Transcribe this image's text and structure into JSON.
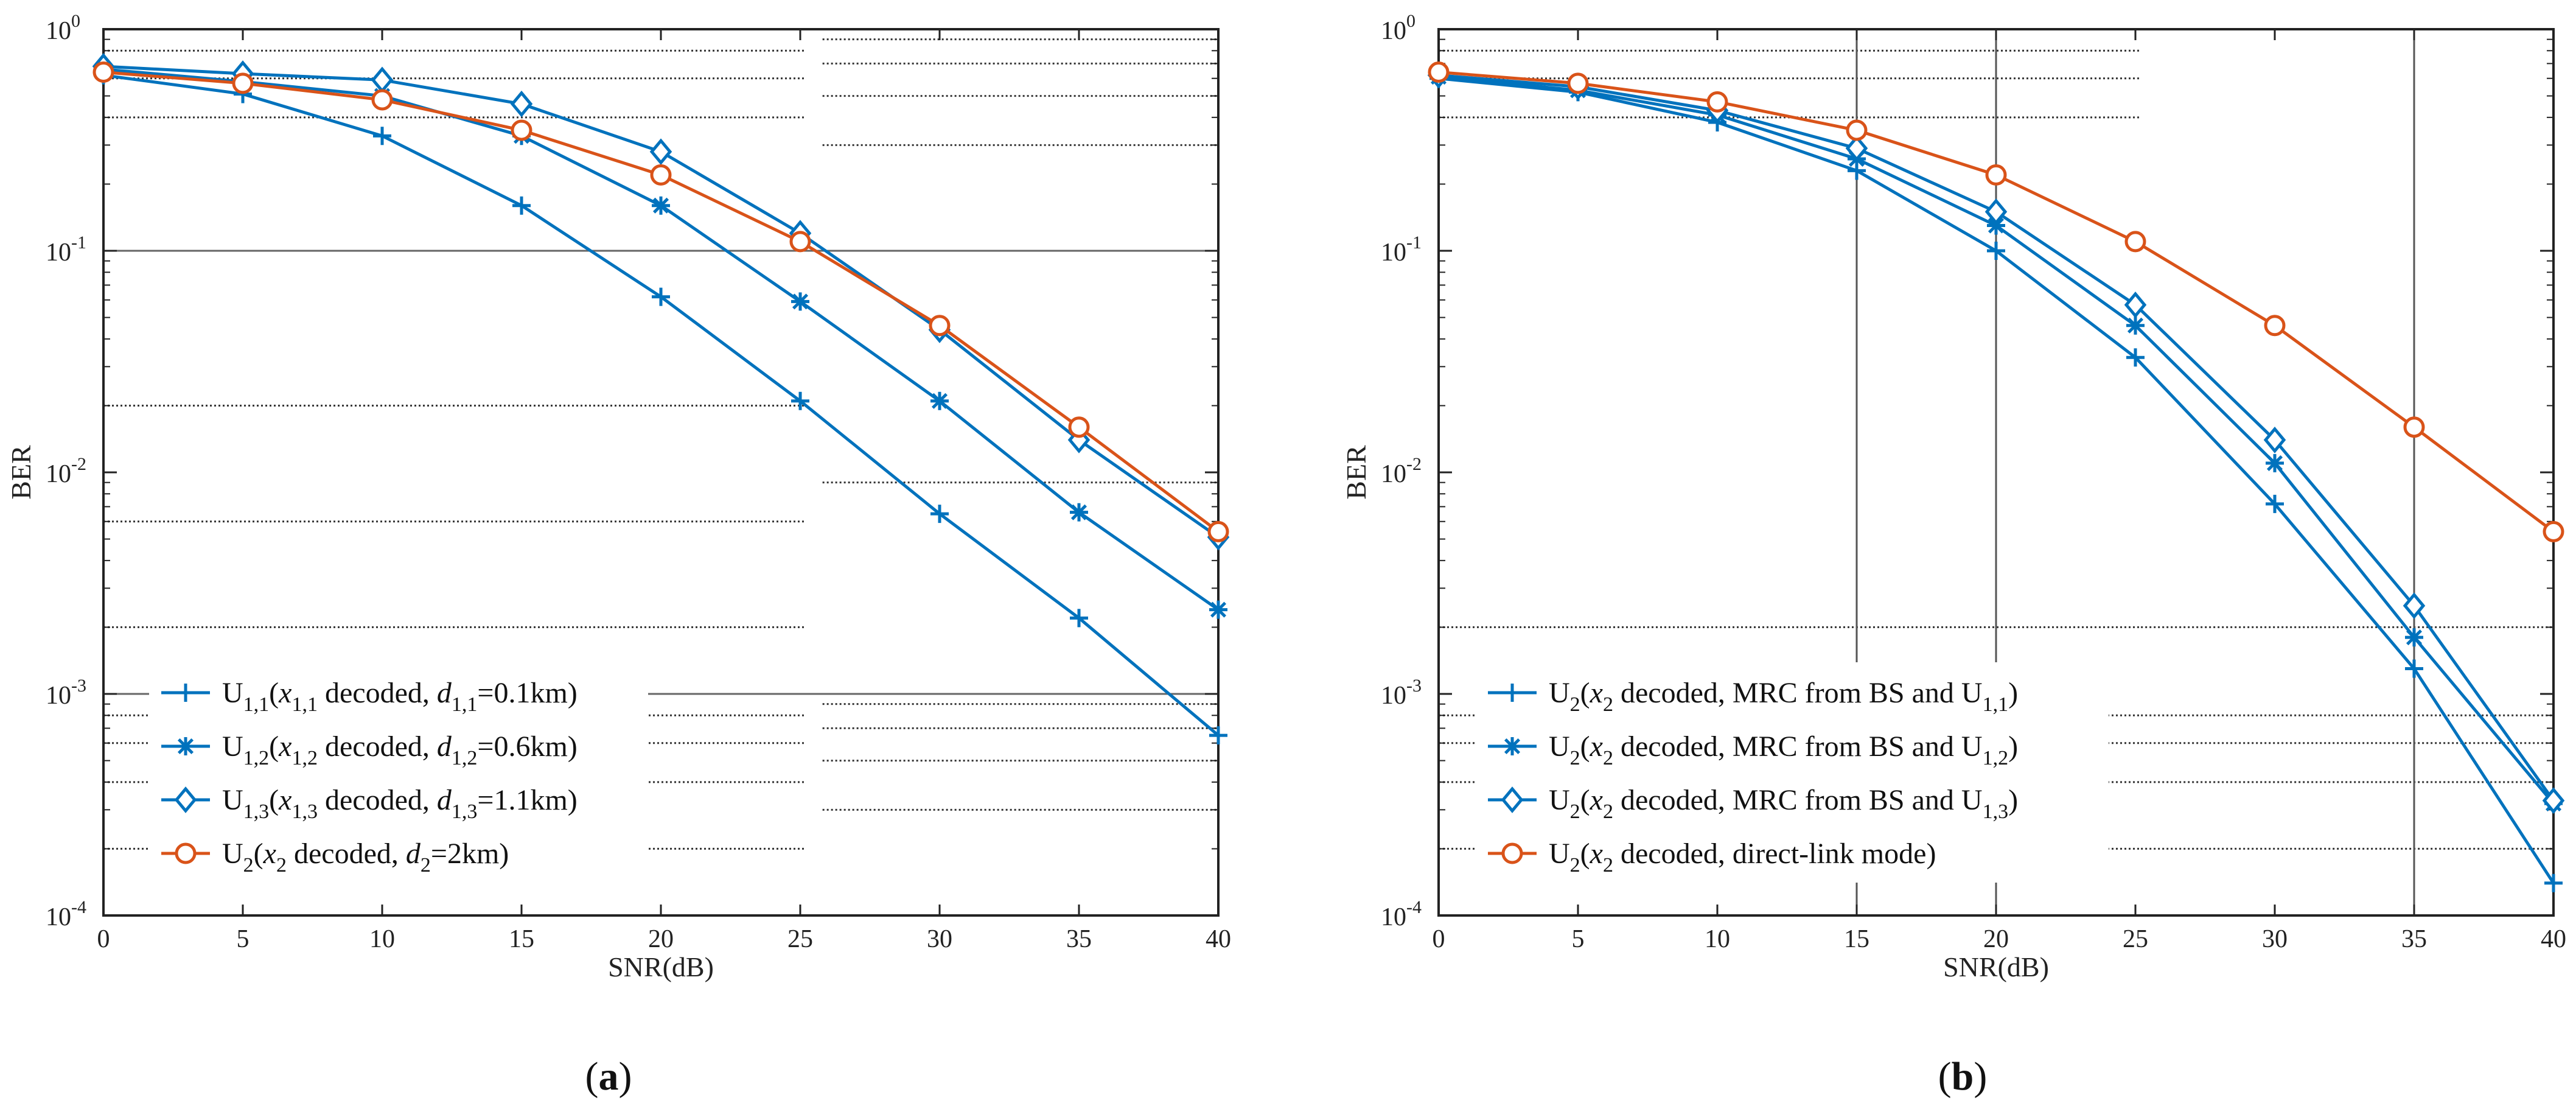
{
  "colors": {
    "blue": "#0072BD",
    "orange": "#D95319",
    "axis": "#222222",
    "grid": "#555555"
  },
  "chart_data": [
    {
      "panel": "a",
      "caption": "(a)",
      "type": "line",
      "xlabel": "SNR(dB)",
      "ylabel": "BER",
      "yscale": "log",
      "xlim": [
        0,
        40
      ],
      "ylim_exp": [
        -4,
        0
      ],
      "x_ticks": [
        "0",
        "5",
        "10",
        "15",
        "20",
        "25",
        "30",
        "35",
        "40"
      ],
      "y_tick_exps": [
        "0",
        "-1",
        "-2",
        "-3",
        "-4"
      ],
      "x": [
        0,
        5,
        10,
        15,
        20,
        25,
        30,
        35,
        40
      ],
      "legend_position": "bottom-left",
      "series": [
        {
          "name": "U1,1(x1,1 decoded, d1,1=0.1km)",
          "marker": "plus",
          "color": "#0072BD",
          "legend": {
            "m1": "U",
            "s1": "1,1",
            "m2": "(",
            "it1": "x",
            "s2": "1,1",
            "m3": " decoded, ",
            "it2": "d",
            "s3": "1,1",
            "m4": "=0.1km)"
          },
          "values": [
            0.62,
            0.51,
            0.33,
            0.16,
            0.062,
            0.021,
            0.0065,
            0.0022,
            0.00065
          ]
        },
        {
          "name": "U1,2(x1,2 decoded, d1,2=0.6km)",
          "marker": "asterisk",
          "color": "#0072BD",
          "legend": {
            "m1": "U",
            "s1": "1,2",
            "m2": "(",
            "it1": "x",
            "s2": "1,2",
            "m3": " decoded, ",
            "it2": "d",
            "s3": "1,2",
            "m4": "=0.6km)"
          },
          "values": [
            0.66,
            0.58,
            0.5,
            0.33,
            0.16,
            0.059,
            0.021,
            0.0066,
            0.0024
          ]
        },
        {
          "name": "U1,3(x1,3 decoded, d1,3=1.1km)",
          "marker": "diamond",
          "color": "#0072BD",
          "legend": {
            "m1": "U",
            "s1": "1,3",
            "m2": "(",
            "it1": "x",
            "s2": "1,3",
            "m3": " decoded, ",
            "it2": "d",
            "s3": "1,3",
            "m4": "=1.1km)"
          },
          "values": [
            0.68,
            0.63,
            0.59,
            0.46,
            0.28,
            0.12,
            0.044,
            0.014,
            0.0051
          ]
        },
        {
          "name": "U2(x2 decoded, d2=2km)",
          "marker": "circle",
          "color": "#D95319",
          "legend": {
            "m1": "U",
            "s1": "2",
            "m2": "(",
            "it1": "x",
            "s2": "2",
            "m3": " decoded, ",
            "it2": "d",
            "s3": "2",
            "m4": "=2km)"
          },
          "values": [
            0.64,
            0.57,
            0.48,
            0.35,
            0.22,
            0.11,
            0.046,
            0.016,
            0.0054
          ]
        }
      ]
    },
    {
      "panel": "b",
      "caption": "(b)",
      "type": "line",
      "xlabel": "SNR(dB)",
      "ylabel": "BER",
      "yscale": "log",
      "xlim": [
        0,
        40
      ],
      "ylim_exp": [
        -4,
        0
      ],
      "x_ticks": [
        "0",
        "5",
        "10",
        "15",
        "20",
        "25",
        "30",
        "35",
        "40"
      ],
      "y_tick_exps": [
        "0",
        "-1",
        "-2",
        "-3",
        "-4"
      ],
      "x": [
        0,
        5,
        10,
        15,
        20,
        25,
        30,
        35,
        40
      ],
      "legend_position": "bottom-left",
      "series": [
        {
          "name": "U2(x2 decoded, MRC from BS and U1,1)",
          "marker": "plus",
          "color": "#0072BD",
          "legend": {
            "m1": "U",
            "s1": "2",
            "m2": "(",
            "it1": "x",
            "s2": "2",
            "m3": " decoded, MRC from BS and U",
            "s3": "1,1",
            "m4": ")"
          },
          "values": [
            0.6,
            0.52,
            0.38,
            0.23,
            0.1,
            0.033,
            0.0072,
            0.0013,
            0.00014
          ]
        },
        {
          "name": "U2(x2 decoded, MRC from BS and U1,2)",
          "marker": "asterisk",
          "color": "#0072BD",
          "legend": {
            "m1": "U",
            "s1": "2",
            "m2": "(",
            "it1": "x",
            "s2": "2",
            "m3": " decoded, MRC from BS and U",
            "s3": "1,2",
            "m4": ")"
          },
          "values": [
            0.61,
            0.53,
            0.41,
            0.26,
            0.13,
            0.046,
            0.011,
            0.0018,
            0.00032
          ]
        },
        {
          "name": "U2(x2 decoded, MRC from BS and U1,3)",
          "marker": "diamond",
          "color": "#0072BD",
          "legend": {
            "m1": "U",
            "s1": "2",
            "m2": "(",
            "it1": "x",
            "s2": "2",
            "m3": " decoded, MRC from BS and U",
            "s3": "1,3",
            "m4": ")"
          },
          "values": [
            0.62,
            0.55,
            0.43,
            0.29,
            0.15,
            0.057,
            0.014,
            0.0025,
            0.00033
          ]
        },
        {
          "name": "U2(x2 decoded, direct-link mode)",
          "marker": "circle",
          "color": "#D95319",
          "legend": {
            "m1": "U",
            "s1": "2",
            "m2": "(",
            "it1": "x",
            "s2": "2",
            "m3": " decoded, direct-link mode)"
          },
          "values": [
            0.64,
            0.57,
            0.47,
            0.35,
            0.22,
            0.11,
            0.046,
            0.016,
            0.0054
          ]
        }
      ]
    }
  ]
}
